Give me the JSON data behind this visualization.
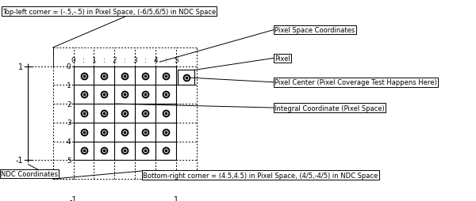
{
  "top_label": "Top-left corner = (-.5,-.5) in Pixel Space, (-6/5,6/5) in NDC Space",
  "bottom_label": "Bottom-right corner = (4.5,4.5) in Pixel Space, (4/5,-4/5) in NDC Space",
  "ndc_label": "NDC Coordinates",
  "ann_pixel_space": "Pixel Space Coordinates",
  "ann_pixel": "Pixel",
  "ann_center": "Pixel Center (Pixel Coverage Test Happens Here)",
  "ann_integral": "Integral Coordinate (Pixel Space)",
  "bg_color": "#ffffff",
  "gx0": 0.95,
  "gy0": 0.28,
  "cell": 0.265,
  "n": 5,
  "figw": 6.0,
  "figh": 2.55,
  "dpi": 100
}
